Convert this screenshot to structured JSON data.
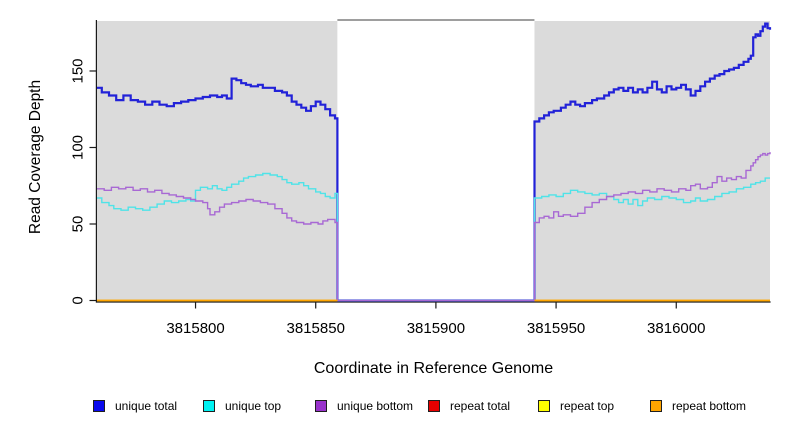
{
  "chart_data": {
    "type": "line",
    "title": "",
    "step": true,
    "grid": false,
    "xlabel": "Coordinate in Reference Genome",
    "ylabel": "Read Coverage Depth",
    "xlim": [
      3815759,
      3816039
    ],
    "ylim": [
      0,
      183
    ],
    "x_ticks": [
      "3815800",
      "3815850",
      "3815900",
      "3815950",
      "3816000"
    ],
    "x_tick_values": [
      3815800,
      3815850,
      3815900,
      3815950,
      3816000
    ],
    "y_ticks": [
      "0",
      "50",
      "100",
      "150"
    ],
    "y_tick_values": [
      0,
      50,
      100,
      150
    ],
    "panel_color": "#dbdbdb",
    "axis_color": "#1a1a1a",
    "gap_border_color": "#7f7f7f",
    "panels": [
      [
        3815759,
        3815859
      ],
      [
        3815941,
        3816039
      ]
    ],
    "gap": [
      3815859,
      3815941
    ],
    "legend_position": "bottom",
    "series": [
      {
        "name": "unique total",
        "color": "#2222d8",
        "legend_color": "#0a0aee",
        "width": 2.2,
        "points": [
          [
            3815759,
            139
          ],
          [
            3815761,
            136
          ],
          [
            3815764,
            134
          ],
          [
            3815767,
            131
          ],
          [
            3815770,
            134
          ],
          [
            3815773,
            131
          ],
          [
            3815776,
            130
          ],
          [
            3815779,
            128
          ],
          [
            3815782,
            130
          ],
          [
            3815785,
            128
          ],
          [
            3815788,
            127
          ],
          [
            3815791,
            129
          ],
          [
            3815794,
            130
          ],
          [
            3815797,
            131
          ],
          [
            3815800,
            132
          ],
          [
            3815803,
            133
          ],
          [
            3815806,
            134
          ],
          [
            3815809,
            133
          ],
          [
            3815811,
            134
          ],
          [
            3815813,
            132
          ],
          [
            3815815,
            145
          ],
          [
            3815817,
            144
          ],
          [
            3815819,
            142
          ],
          [
            3815821,
            141
          ],
          [
            3815823,
            140
          ],
          [
            3815826,
            141
          ],
          [
            3815828,
            139
          ],
          [
            3815831,
            139
          ],
          [
            3815833,
            137
          ],
          [
            3815836,
            136
          ],
          [
            3815838,
            134
          ],
          [
            3815840,
            130
          ],
          [
            3815842,
            128
          ],
          [
            3815844,
            126
          ],
          [
            3815846,
            124
          ],
          [
            3815848,
            127
          ],
          [
            3815850,
            130
          ],
          [
            3815852,
            128
          ],
          [
            3815854,
            125
          ],
          [
            3815856,
            121
          ],
          [
            3815858,
            119
          ],
          [
            3815859,
            0
          ],
          [
            3815941,
            117
          ],
          [
            3815943,
            119
          ],
          [
            3815945,
            121
          ],
          [
            3815947,
            123
          ],
          [
            3815949,
            124
          ],
          [
            3815952,
            126
          ],
          [
            3815954,
            128
          ],
          [
            3815956,
            130
          ],
          [
            3815958,
            128
          ],
          [
            3815960,
            127
          ],
          [
            3815962,
            129
          ],
          [
            3815965,
            131
          ],
          [
            3815967,
            132
          ],
          [
            3815970,
            134
          ],
          [
            3815972,
            136
          ],
          [
            3815974,
            138
          ],
          [
            3815976,
            139
          ],
          [
            3815978,
            137
          ],
          [
            3815980,
            139
          ],
          [
            3815982,
            136
          ],
          [
            3815984,
            138
          ],
          [
            3815986,
            136
          ],
          [
            3815988,
            139
          ],
          [
            3815990,
            143
          ],
          [
            3815992,
            138
          ],
          [
            3815994,
            136
          ],
          [
            3815996,
            140
          ],
          [
            3815998,
            138
          ],
          [
            3816000,
            139
          ],
          [
            3816002,
            141
          ],
          [
            3816004,
            138
          ],
          [
            3816006,
            134
          ],
          [
            3816008,
            137
          ],
          [
            3816010,
            140
          ],
          [
            3816012,
            143
          ],
          [
            3816014,
            145
          ],
          [
            3816016,
            147
          ],
          [
            3816018,
            148
          ],
          [
            3816020,
            150
          ],
          [
            3816022,
            151
          ],
          [
            3816024,
            152
          ],
          [
            3816026,
            154
          ],
          [
            3816028,
            156
          ],
          [
            3816030,
            158
          ],
          [
            3816031,
            160
          ],
          [
            3816032,
            172
          ],
          [
            3816033,
            174
          ],
          [
            3816034,
            173
          ],
          [
            3816035,
            176
          ],
          [
            3816036,
            179
          ],
          [
            3816037,
            181
          ],
          [
            3816038,
            178
          ],
          [
            3816039,
            177
          ]
        ]
      },
      {
        "name": "unique top",
        "color": "#4fe3e8",
        "legend_color": "#00f2f2",
        "width": 1.4,
        "points": [
          [
            3815759,
            67
          ],
          [
            3815761,
            64
          ],
          [
            3815764,
            62
          ],
          [
            3815766,
            60
          ],
          [
            3815769,
            59
          ],
          [
            3815772,
            61
          ],
          [
            3815775,
            60
          ],
          [
            3815778,
            59
          ],
          [
            3815781,
            61
          ],
          [
            3815784,
            63
          ],
          [
            3815787,
            65
          ],
          [
            3815790,
            64
          ],
          [
            3815793,
            65
          ],
          [
            3815796,
            66
          ],
          [
            3815798,
            65
          ],
          [
            3815800,
            72
          ],
          [
            3815802,
            74
          ],
          [
            3815805,
            73
          ],
          [
            3815807,
            75
          ],
          [
            3815809,
            73
          ],
          [
            3815811,
            72
          ],
          [
            3815813,
            74
          ],
          [
            3815815,
            76
          ],
          [
            3815818,
            78
          ],
          [
            3815820,
            80
          ],
          [
            3815822,
            81
          ],
          [
            3815825,
            82
          ],
          [
            3815828,
            83
          ],
          [
            3815831,
            82
          ],
          [
            3815834,
            81
          ],
          [
            3815836,
            79
          ],
          [
            3815838,
            77
          ],
          [
            3815840,
            76
          ],
          [
            3815843,
            77
          ],
          [
            3815845,
            75
          ],
          [
            3815847,
            73
          ],
          [
            3815850,
            71
          ],
          [
            3815852,
            70
          ],
          [
            3815854,
            68
          ],
          [
            3815856,
            67
          ],
          [
            3815858,
            70
          ],
          [
            3815859,
            0
          ],
          [
            3815941,
            67
          ],
          [
            3815944,
            68
          ],
          [
            3815947,
            69
          ],
          [
            3815950,
            68
          ],
          [
            3815953,
            70
          ],
          [
            3815956,
            72
          ],
          [
            3815959,
            71
          ],
          [
            3815962,
            70
          ],
          [
            3815965,
            69
          ],
          [
            3815968,
            70
          ],
          [
            3815971,
            68
          ],
          [
            3815974,
            66
          ],
          [
            3815976,
            64
          ],
          [
            3815978,
            66
          ],
          [
            3815980,
            63
          ],
          [
            3815982,
            66
          ],
          [
            3815984,
            62
          ],
          [
            3815986,
            65
          ],
          [
            3815988,
            67
          ],
          [
            3815991,
            66
          ],
          [
            3815994,
            68
          ],
          [
            3815997,
            67
          ],
          [
            3816000,
            66
          ],
          [
            3816003,
            64
          ],
          [
            3816006,
            65
          ],
          [
            3816008,
            67
          ],
          [
            3816010,
            65
          ],
          [
            3816013,
            66
          ],
          [
            3816016,
            68
          ],
          [
            3816019,
            70
          ],
          [
            3816022,
            71
          ],
          [
            3816025,
            73
          ],
          [
            3816028,
            74
          ],
          [
            3816031,
            76
          ],
          [
            3816033,
            77
          ],
          [
            3816035,
            78
          ],
          [
            3816037,
            80
          ],
          [
            3816039,
            80
          ]
        ]
      },
      {
        "name": "unique bottom",
        "color": "#a868d4",
        "legend_color": "#9932cc",
        "width": 1.4,
        "points": [
          [
            3815759,
            73
          ],
          [
            3815762,
            72
          ],
          [
            3815765,
            74
          ],
          [
            3815768,
            73
          ],
          [
            3815771,
            74
          ],
          [
            3815774,
            72
          ],
          [
            3815777,
            73
          ],
          [
            3815780,
            71
          ],
          [
            3815783,
            72
          ],
          [
            3815786,
            70
          ],
          [
            3815789,
            69
          ],
          [
            3815792,
            68
          ],
          [
            3815795,
            67
          ],
          [
            3815798,
            66
          ],
          [
            3815800,
            65
          ],
          [
            3815803,
            64
          ],
          [
            3815805,
            60
          ],
          [
            3815806,
            56
          ],
          [
            3815808,
            58
          ],
          [
            3815810,
            61
          ],
          [
            3815812,
            63
          ],
          [
            3815815,
            64
          ],
          [
            3815818,
            65
          ],
          [
            3815821,
            66
          ],
          [
            3815824,
            65
          ],
          [
            3815827,
            64
          ],
          [
            3815830,
            63
          ],
          [
            3815833,
            60
          ],
          [
            3815836,
            57
          ],
          [
            3815838,
            54
          ],
          [
            3815840,
            52
          ],
          [
            3815842,
            51
          ],
          [
            3815845,
            50
          ],
          [
            3815848,
            51
          ],
          [
            3815851,
            50
          ],
          [
            3815853,
            52
          ],
          [
            3815855,
            53
          ],
          [
            3815858,
            51
          ],
          [
            3815859,
            0
          ],
          [
            3815941,
            51
          ],
          [
            3815943,
            54
          ],
          [
            3815945,
            55
          ],
          [
            3815947,
            54
          ],
          [
            3815949,
            58
          ],
          [
            3815951,
            55
          ],
          [
            3815953,
            56
          ],
          [
            3815956,
            55
          ],
          [
            3815959,
            57
          ],
          [
            3815962,
            61
          ],
          [
            3815965,
            64
          ],
          [
            3815968,
            66
          ],
          [
            3815971,
            68
          ],
          [
            3815974,
            69
          ],
          [
            3815977,
            70
          ],
          [
            3815980,
            71
          ],
          [
            3815983,
            70
          ],
          [
            3815986,
            72
          ],
          [
            3815989,
            71
          ],
          [
            3815992,
            73
          ],
          [
            3815995,
            72
          ],
          [
            3815998,
            71
          ],
          [
            3816001,
            73
          ],
          [
            3816004,
            72
          ],
          [
            3816006,
            75
          ],
          [
            3816008,
            76
          ],
          [
            3816010,
            73
          ],
          [
            3816013,
            74
          ],
          [
            3816015,
            77
          ],
          [
            3816017,
            81
          ],
          [
            3816019,
            78
          ],
          [
            3816021,
            80
          ],
          [
            3816023,
            79
          ],
          [
            3816025,
            81
          ],
          [
            3816027,
            80
          ],
          [
            3816029,
            85
          ],
          [
            3816031,
            88
          ],
          [
            3816032,
            90
          ],
          [
            3816033,
            92
          ],
          [
            3816034,
            94
          ],
          [
            3816035,
            95
          ],
          [
            3816036,
            96
          ],
          [
            3816037,
            95
          ],
          [
            3816038,
            96
          ],
          [
            3816039,
            97
          ]
        ]
      },
      {
        "name": "repeat total",
        "color": "#e60000",
        "legend_color": "#e60000",
        "width": 1.4,
        "points": [
          [
            3815759,
            0
          ],
          [
            3815859,
            0
          ],
          null,
          [
            3815941,
            0
          ],
          [
            3816039,
            0
          ]
        ]
      },
      {
        "name": "repeat top",
        "color": "#ffff00",
        "legend_color": "#ffff00",
        "width": 1.4,
        "points": [
          [
            3815759,
            0
          ],
          [
            3815859,
            0
          ],
          null,
          [
            3815941,
            0
          ],
          [
            3816039,
            0
          ]
        ]
      },
      {
        "name": "repeat bottom",
        "color": "#ffa500",
        "legend_color": "#ffa500",
        "width": 1.6,
        "points": [
          [
            3815759,
            0
          ],
          [
            3815859,
            0
          ],
          null,
          [
            3815941,
            0
          ],
          [
            3816039,
            0
          ]
        ]
      }
    ]
  }
}
